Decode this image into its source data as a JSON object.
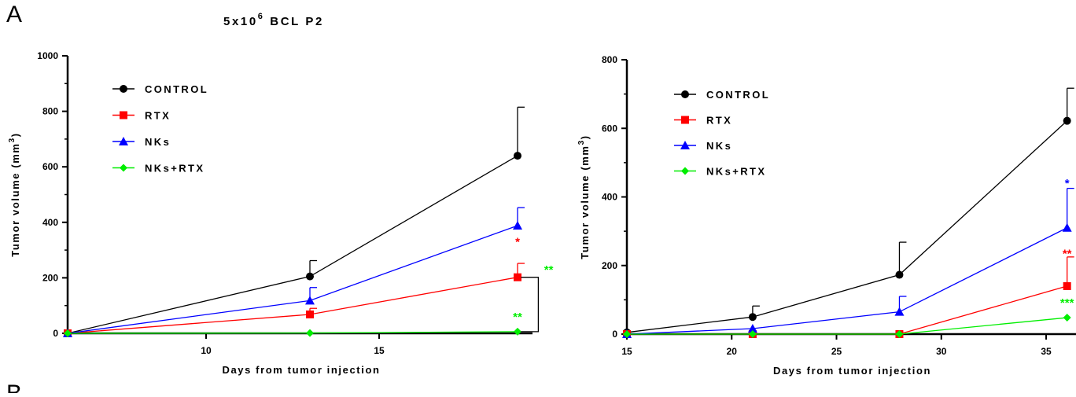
{
  "panel_letters": {
    "top": "A",
    "bottom": "B"
  },
  "colors": {
    "control": "#000000",
    "rtx": "#ff0000",
    "nks": "#0000ff",
    "nks_rtx": "#00ee00"
  },
  "chart_data": [
    {
      "type": "line",
      "title_base": "5x10",
      "title_sup": "6",
      "title_rest": " BCL P2",
      "xlabel": "Days from tumor injection",
      "ylabel_base": "Tumor volume (mm",
      "ylabel_sup": "3",
      "ylabel_close": ")",
      "xlim": [
        6,
        19.5
      ],
      "ylim": [
        0,
        1000
      ],
      "xticks": [
        10,
        15
      ],
      "yticks": [
        0,
        200,
        400,
        600,
        800,
        1000
      ],
      "series": [
        {
          "name": "CONTROL",
          "color": "#000000",
          "marker": "circle",
          "x": [
            6,
            13,
            19
          ],
          "y": [
            0,
            205,
            640
          ],
          "err": [
            0,
            57,
            175
          ]
        },
        {
          "name": "RTX",
          "color": "#ff0000",
          "marker": "square",
          "x": [
            6,
            13,
            19
          ],
          "y": [
            0,
            68,
            202
          ],
          "err": [
            0,
            22,
            50
          ]
        },
        {
          "name": "NKs",
          "color": "#0000ff",
          "marker": "triangle",
          "x": [
            6,
            13,
            19
          ],
          "y": [
            0,
            118,
            388
          ],
          "err": [
            0,
            47,
            65
          ]
        },
        {
          "name": "NKs+RTX",
          "color": "#00ee00",
          "marker": "diamond",
          "x": [
            6,
            13,
            19
          ],
          "y": [
            0,
            1,
            6
          ],
          "err": [
            0,
            0,
            0
          ]
        }
      ],
      "annotations": [
        {
          "text": "*",
          "x": 19,
          "y": 330,
          "color": "#ff0000"
        },
        {
          "text": "**",
          "x": 19,
          "y": 60,
          "color": "#00ee00"
        },
        {
          "text": "**",
          "x": 19.9,
          "y": 230,
          "color": "#00ee00"
        }
      ],
      "bracket": {
        "x_start": 19.1,
        "x_end": 19.6,
        "y_top": 202,
        "y_bottom": 6
      }
    },
    {
      "type": "line",
      "xlabel": "Days from tumor injection",
      "ylabel_base": "Tumor volume (mm",
      "ylabel_sup": "3",
      "ylabel_close": ")",
      "xlim": [
        15,
        36.5
      ],
      "ylim": [
        0,
        800
      ],
      "xticks": [
        15,
        20,
        25,
        30,
        35
      ],
      "yticks": [
        0,
        200,
        400,
        600,
        800
      ],
      "series": [
        {
          "name": "CONTROL",
          "color": "#000000",
          "marker": "circle",
          "x": [
            15,
            21,
            28,
            36
          ],
          "y": [
            5,
            50,
            173,
            622
          ],
          "err": [
            0,
            32,
            95,
            95
          ]
        },
        {
          "name": "RTX",
          "color": "#ff0000",
          "marker": "square",
          "x": [
            15,
            21,
            28,
            36
          ],
          "y": [
            0,
            0,
            0,
            140
          ],
          "err": [
            0,
            0,
            0,
            85
          ]
        },
        {
          "name": "NKs",
          "color": "#0000ff",
          "marker": "triangle",
          "x": [
            15,
            21,
            28,
            36
          ],
          "y": [
            0,
            16,
            65,
            310
          ],
          "err": [
            0,
            0,
            45,
            115
          ]
        },
        {
          "name": "NKs+RTX",
          "color": "#00ee00",
          "marker": "diamond",
          "x": [
            15,
            21,
            28,
            36
          ],
          "y": [
            0,
            0,
            0,
            48
          ],
          "err": [
            0,
            0,
            0,
            0
          ]
        }
      ],
      "annotations": [
        {
          "text": "*",
          "x": 36,
          "y": 440,
          "color": "#0000ff"
        },
        {
          "text": "**",
          "x": 36,
          "y": 235,
          "color": "#ff0000"
        },
        {
          "text": "***",
          "x": 36,
          "y": 92,
          "color": "#00ee00"
        }
      ]
    }
  ]
}
